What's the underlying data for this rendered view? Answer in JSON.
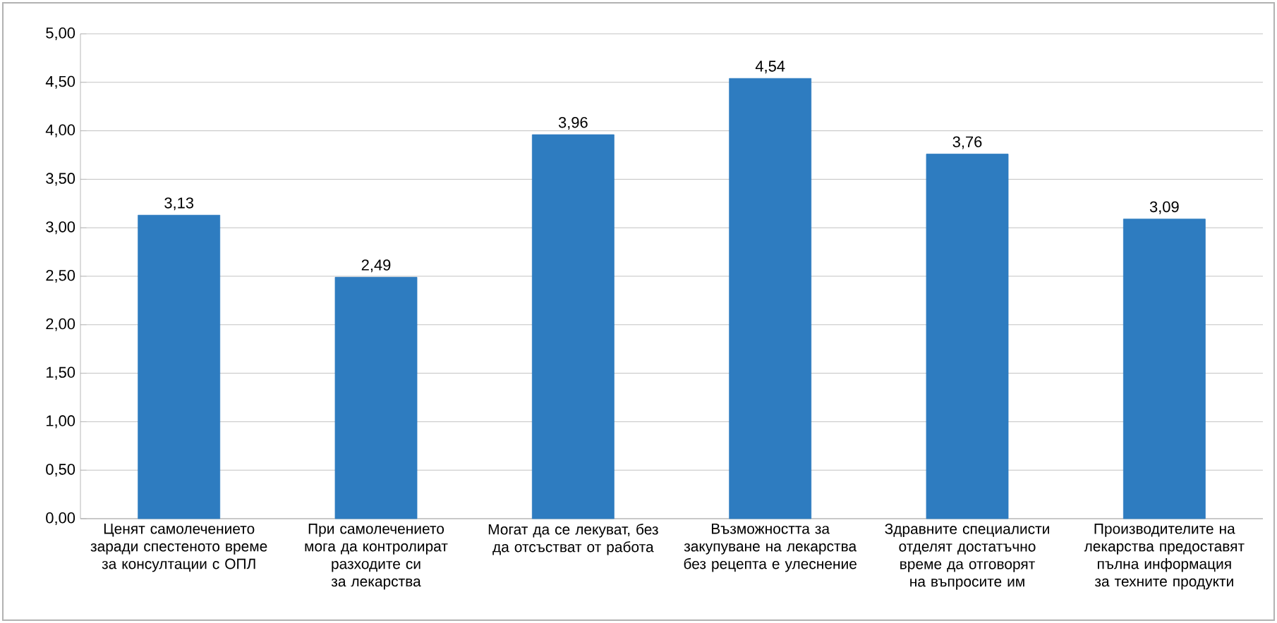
{
  "chart_data": {
    "type": "bar",
    "categories": [
      "Ценят самолечението заради спестеното време за консултации с ОПЛ",
      "При самолечението  мога да контролират разходите  си за лекарства",
      "Могат да се лекуват,  без да отсъстват от работа",
      "Възможността за закупуване на лекарства без рецепта е улеснение",
      "Здравните специалисти отделят достатъчно време  да отговорят на въпросите им",
      "Производителите на лекарства  предоставят пълна информация за техните продукти"
    ],
    "values": [
      3.13,
      2.49,
      3.96,
      4.54,
      3.76,
      3.09
    ],
    "value_labels": [
      "3,13",
      "2,49",
      "3,96",
      "4,54",
      "3,76",
      "3,09"
    ],
    "color": "#2e7cc0",
    "ylim": [
      0,
      5
    ],
    "yticks": [
      {
        "value": 0,
        "label": "0,00"
      },
      {
        "value": 0.5,
        "label": "0,50"
      },
      {
        "value": 1,
        "label": "1,00"
      },
      {
        "value": 1.5,
        "label": "1,50"
      },
      {
        "value": 2,
        "label": "2,00"
      },
      {
        "value": 2.5,
        "label": "2,50"
      },
      {
        "value": 3,
        "label": "3,00"
      },
      {
        "value": 3.5,
        "label": "3,50"
      },
      {
        "value": 4,
        "label": "4,00"
      },
      {
        "value": 4.5,
        "label": "4,50"
      },
      {
        "value": 5,
        "label": "5,00"
      }
    ],
    "grid": "y"
  }
}
